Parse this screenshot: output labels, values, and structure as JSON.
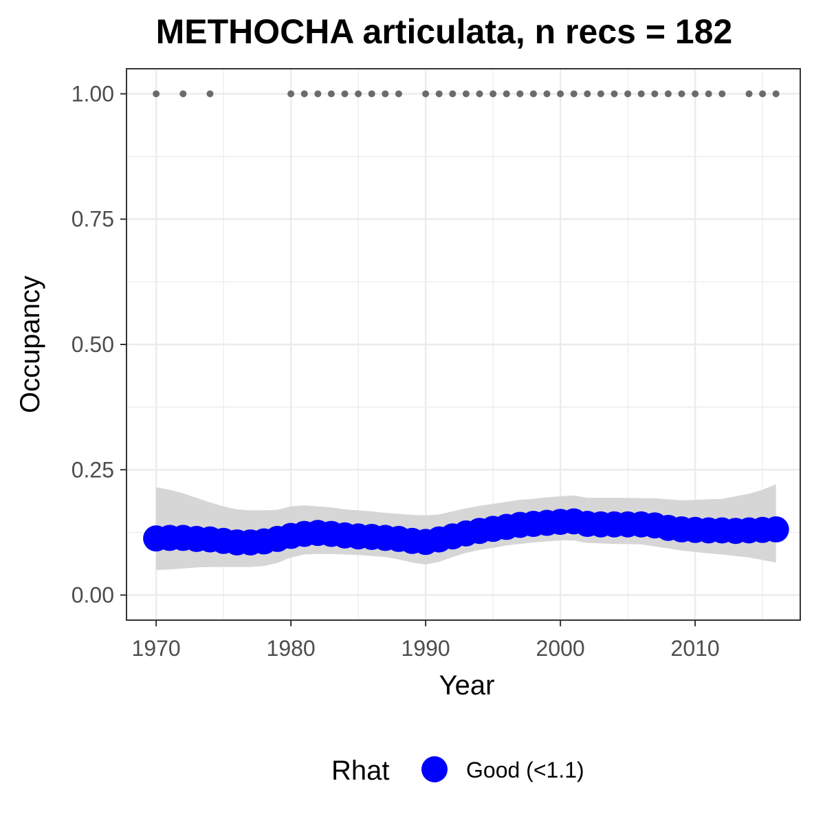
{
  "chart_data": {
    "type": "line",
    "title": "METHOCHA articulata, n recs = 182",
    "xlabel": "Year",
    "ylabel": "Occupancy",
    "xlim": [
      1967.8,
      2017.8
    ],
    "ylim": [
      -0.05,
      1.05
    ],
    "x_ticks": [
      1970,
      1980,
      1990,
      2000,
      2010
    ],
    "x_tick_labels": [
      "1970",
      "1980",
      "1990",
      "2000",
      "2010"
    ],
    "y_ticks": [
      0,
      0.25,
      0.5,
      0.75,
      1.0
    ],
    "y_tick_labels": [
      "0.00",
      "0.25",
      "0.50",
      "0.75",
      "1.00"
    ],
    "grid": true,
    "legend": {
      "title": "Rhat",
      "position": "bottom",
      "entries": [
        {
          "label": "Good (<1.1)",
          "color": "#0000ff"
        }
      ]
    },
    "colors": {
      "estimate": "#0000ff",
      "ribbon": "#d6d6d6",
      "records": "#6b6b6b",
      "panel_border": "#333333",
      "grid": "#ebebeb"
    },
    "record_years": [
      1970,
      1972,
      1974,
      1980,
      1981,
      1982,
      1983,
      1984,
      1985,
      1986,
      1987,
      1988,
      1990,
      1991,
      1992,
      1993,
      1994,
      1995,
      1996,
      1997,
      1998,
      1999,
      2000,
      2001,
      2002,
      2003,
      2004,
      2005,
      2006,
      2007,
      2008,
      2009,
      2010,
      2011,
      2012,
      2014,
      2015,
      2016
    ],
    "record_value": 1.0,
    "series": [
      {
        "x": [
          1970,
          1971,
          1972,
          1973,
          1974,
          1975,
          1976,
          1977,
          1978,
          1979,
          1980,
          1981,
          1982,
          1983,
          1984,
          1985,
          1986,
          1987,
          1988,
          1989,
          1990,
          1991,
          1992,
          1993,
          1994,
          1995,
          1996,
          1997,
          1998,
          1999,
          2000,
          2001,
          2002,
          2003,
          2004,
          2005,
          2006,
          2007,
          2008,
          2009,
          2010,
          2011,
          2012,
          2013,
          2014,
          2015,
          2016
        ],
        "mean": [
          0.113,
          0.114,
          0.114,
          0.112,
          0.111,
          0.108,
          0.105,
          0.105,
          0.107,
          0.112,
          0.118,
          0.122,
          0.124,
          0.122,
          0.119,
          0.117,
          0.116,
          0.114,
          0.112,
          0.108,
          0.106,
          0.111,
          0.117,
          0.123,
          0.128,
          0.132,
          0.136,
          0.14,
          0.142,
          0.144,
          0.146,
          0.147,
          0.142,
          0.141,
          0.141,
          0.141,
          0.141,
          0.139,
          0.134,
          0.131,
          0.13,
          0.129,
          0.129,
          0.128,
          0.129,
          0.13,
          0.131
        ],
        "lower": [
          0.05,
          0.051,
          0.053,
          0.055,
          0.056,
          0.056,
          0.056,
          0.056,
          0.058,
          0.064,
          0.075,
          0.081,
          0.082,
          0.082,
          0.081,
          0.08,
          0.078,
          0.076,
          0.071,
          0.065,
          0.061,
          0.066,
          0.076,
          0.084,
          0.09,
          0.094,
          0.099,
          0.102,
          0.105,
          0.107,
          0.109,
          0.109,
          0.104,
          0.103,
          0.102,
          0.102,
          0.101,
          0.097,
          0.093,
          0.089,
          0.086,
          0.083,
          0.081,
          0.078,
          0.075,
          0.07,
          0.065
        ],
        "upper": [
          0.215,
          0.21,
          0.203,
          0.194,
          0.185,
          0.177,
          0.171,
          0.169,
          0.169,
          0.17,
          0.177,
          0.179,
          0.177,
          0.175,
          0.171,
          0.169,
          0.167,
          0.164,
          0.162,
          0.16,
          0.159,
          0.161,
          0.167,
          0.173,
          0.178,
          0.182,
          0.186,
          0.19,
          0.192,
          0.195,
          0.197,
          0.199,
          0.194,
          0.194,
          0.194,
          0.194,
          0.193,
          0.193,
          0.191,
          0.189,
          0.19,
          0.191,
          0.192,
          0.197,
          0.202,
          0.21,
          0.221
        ]
      }
    ]
  }
}
